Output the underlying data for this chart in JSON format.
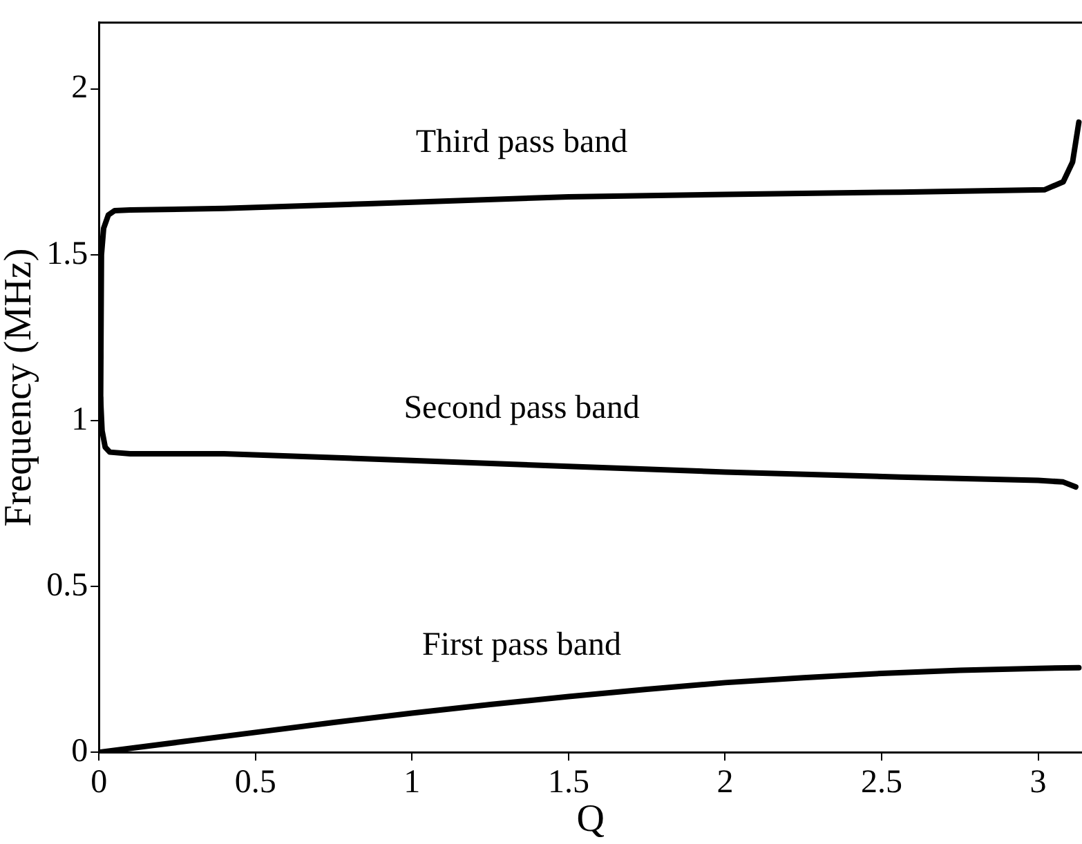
{
  "chart_data": {
    "type": "line",
    "xlabel": "Q",
    "ylabel": "Frequency (MHz)",
    "xlim": [
      0,
      3.14
    ],
    "xticks": [
      0,
      0.5,
      1,
      1.5,
      2,
      2.5,
      3
    ],
    "ylim": [
      0,
      2.2
    ],
    "yticks": [
      0,
      0.5,
      1,
      1.5,
      2
    ],
    "grid": false,
    "legend": false,
    "marker": "none",
    "line_style": "solid",
    "series": [
      {
        "name": "First pass band",
        "color": "#000000",
        "x": [
          0,
          0.25,
          0.5,
          0.75,
          1,
          1.25,
          1.5,
          1.75,
          2,
          2.25,
          2.5,
          2.75,
          3,
          3.13
        ],
        "values": [
          0,
          0.03,
          0.06,
          0.09,
          0.118,
          0.144,
          0.168,
          0.19,
          0.21,
          0.225,
          0.238,
          0.247,
          0.253,
          0.255
        ]
      },
      {
        "name": "Second pass band",
        "color": "#000000",
        "x": [
          0.005,
          0.01,
          0.02,
          0.035,
          0.1,
          0.4,
          1,
          1.5,
          2,
          2.56,
          3,
          3.08,
          3.12
        ],
        "values": [
          1.07,
          0.97,
          0.92,
          0.905,
          0.9,
          0.9,
          0.88,
          0.862,
          0.845,
          0.83,
          0.82,
          0.815,
          0.8
        ]
      },
      {
        "name": "Third pass band",
        "color": "#000000",
        "x": [
          0.005,
          0.008,
          0.015,
          0.03,
          0.05,
          0.1,
          0.4,
          0.86,
          1.5,
          2,
          2.56,
          3.02,
          3.08,
          3.11,
          3.13
        ],
        "values": [
          1.0,
          1.5,
          1.58,
          1.62,
          1.633,
          1.635,
          1.64,
          1.654,
          1.675,
          1.682,
          1.689,
          1.696,
          1.72,
          1.78,
          1.9
        ]
      }
    ]
  }
}
